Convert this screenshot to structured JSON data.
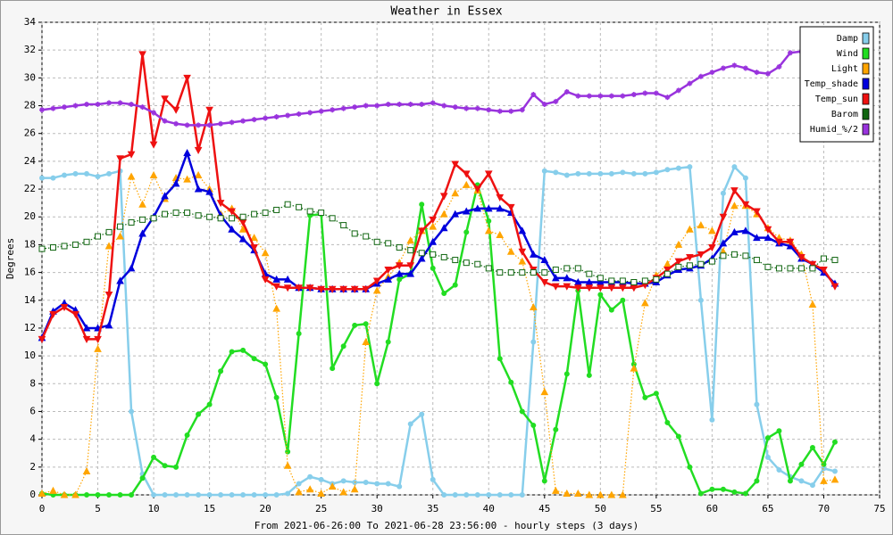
{
  "chart_data": {
    "type": "line",
    "title": "Weather in Essex",
    "x_label": "From 2021-06-26:00 To 2021-06-28 23:56:00 - hourly steps (3 days)",
    "y_label": "Degrees",
    "x": [
      0,
      1,
      2,
      3,
      4,
      5,
      6,
      7,
      8,
      9,
      10,
      11,
      12,
      13,
      14,
      15,
      16,
      17,
      18,
      19,
      20,
      21,
      22,
      23,
      24,
      25,
      26,
      27,
      28,
      29,
      30,
      31,
      32,
      33,
      34,
      35,
      36,
      37,
      38,
      39,
      40,
      41,
      42,
      43,
      44,
      45,
      46,
      47,
      48,
      49,
      50,
      51,
      52,
      53,
      54,
      55,
      56,
      57,
      58,
      59,
      60,
      61,
      62,
      63,
      64,
      65,
      66,
      67,
      68,
      69,
      70,
      71
    ],
    "xlim": [
      0,
      75
    ],
    "xticks": [
      0,
      5,
      10,
      15,
      20,
      25,
      30,
      35,
      40,
      45,
      50,
      55,
      60,
      65,
      70,
      75
    ],
    "ylim": [
      0,
      34
    ],
    "yticks": [
      0,
      2,
      4,
      6,
      8,
      10,
      12,
      14,
      16,
      18,
      20,
      22,
      24,
      26,
      28,
      30,
      32,
      34
    ],
    "grid": true,
    "legend": "upper right",
    "series": [
      {
        "name": "Damp",
        "color": "#87ceeb",
        "line_style": "solid",
        "marker": "circle",
        "values": [
          22.8,
          22.8,
          23,
          23.1,
          23.1,
          22.9,
          23.1,
          23.3,
          6,
          1.5,
          0,
          0,
          0,
          0,
          0,
          0,
          0,
          0,
          0,
          0,
          0,
          0,
          0.1,
          0.8,
          1.3,
          1.1,
          0.8,
          1,
          0.9,
          0.9,
          0.8,
          0.8,
          0.6,
          5.1,
          5.8,
          1.1,
          0,
          0,
          0,
          0,
          0,
          0,
          0,
          0,
          11,
          23.3,
          23.2,
          23,
          23.1,
          23.1,
          23.1,
          23.1,
          23.2,
          23.1,
          23.1,
          23.2,
          23.4,
          23.5,
          23.6,
          14,
          5.4,
          21.7,
          23.6,
          22.8,
          6.5,
          2.7,
          1.8,
          1.3,
          1,
          0.7,
          1.9,
          1.7
        ]
      },
      {
        "name": "Wind",
        "color": "#22dd22",
        "line_style": "solid",
        "marker": "circle",
        "values": [
          0.1,
          0,
          0,
          0,
          0,
          0,
          0,
          0,
          0,
          1.2,
          2.7,
          2.1,
          2,
          4.3,
          5.8,
          6.5,
          8.9,
          10.3,
          10.4,
          9.8,
          9.4,
          7,
          3.1,
          11.6,
          20.1,
          20.2,
          9.1,
          10.7,
          12.2,
          12.3,
          8,
          11,
          15.5,
          15.9,
          20.9,
          16.3,
          14.5,
          15.1,
          18.9,
          22.3,
          19.7,
          9.8,
          8.1,
          6,
          5,
          1,
          4.7,
          8.7,
          14.7,
          8.6,
          14.4,
          13.3,
          14,
          9.4,
          7,
          7.3,
          5.2,
          4.2,
          2,
          0.1,
          0.4,
          0.4,
          0.2,
          0.1,
          1,
          4.1,
          4.6,
          1,
          2.2,
          3.4,
          2.2,
          3.8
        ]
      },
      {
        "name": "Light",
        "color": "#ffa500",
        "line_style": "dotted",
        "marker": "triangle",
        "values": [
          0.1,
          0.3,
          0,
          0,
          1.7,
          10.5,
          17.9,
          18.6,
          22.9,
          20.9,
          23,
          21.3,
          22.8,
          22.7,
          23,
          22,
          20.2,
          20.6,
          19.1,
          18.5,
          17.4,
          13.4,
          2.1,
          0.2,
          0.4,
          0.1,
          0.6,
          0.2,
          0.4,
          11,
          14.7,
          15.7,
          16.7,
          18.3,
          19,
          19.3,
          20.2,
          21.7,
          22.3,
          21.9,
          19,
          18.7,
          17.5,
          16.8,
          13.5,
          7.4,
          0.3,
          0.1,
          0.1,
          0,
          0,
          0,
          0,
          9.1,
          13.8,
          15.8,
          16.6,
          18,
          19.1,
          19.4,
          19,
          17.5,
          20.8,
          20.8,
          20.2,
          19.2,
          18.5,
          18.3,
          17.3,
          13.7,
          1,
          1.1
        ]
      },
      {
        "name": "Temp_shade",
        "color": "#0000dd",
        "line_style": "solid",
        "marker": "triangle",
        "values": [
          11.3,
          13.2,
          13.8,
          13.3,
          12,
          12,
          12.2,
          15.4,
          16.3,
          18.8,
          20,
          21.5,
          22.4,
          24.6,
          22,
          21.8,
          20.1,
          19.1,
          18.4,
          17.6,
          15.9,
          15.5,
          15.5,
          14.9,
          14.9,
          14.8,
          14.8,
          14.8,
          14.8,
          14.8,
          15.2,
          15.5,
          15.9,
          15.9,
          17,
          18.2,
          19.2,
          20.2,
          20.4,
          20.6,
          20.6,
          20.6,
          20.3,
          19,
          17.3,
          16.9,
          15.6,
          15.6,
          15.3,
          15.3,
          15.3,
          15.3,
          15.3,
          15.2,
          15.2,
          15.3,
          15.8,
          16.2,
          16.3,
          16.5,
          17,
          18.1,
          18.9,
          19,
          18.5,
          18.5,
          18.1,
          17.9,
          17,
          16.6,
          16,
          15.2
        ]
      },
      {
        "name": "Temp_sun",
        "color": "#ee1111",
        "line_style": "solid",
        "marker": "triangle-down",
        "values": [
          11.2,
          13,
          13.5,
          13,
          11.2,
          11.2,
          14.4,
          24.2,
          24.5,
          31.7,
          25.2,
          28.5,
          27.7,
          30,
          24.8,
          27.7,
          21,
          20.4,
          19.6,
          17.8,
          15.5,
          15,
          14.9,
          14.9,
          14.9,
          14.8,
          14.8,
          14.8,
          14.8,
          14.8,
          15.4,
          16.2,
          16.5,
          16.5,
          19,
          19.8,
          21.5,
          23.8,
          23.1,
          22,
          23.1,
          21.4,
          20.7,
          17.5,
          16.2,
          15.3,
          15,
          15,
          14.9,
          14.9,
          14.9,
          14.9,
          14.9,
          14.9,
          15.1,
          15.6,
          16.2,
          16.8,
          17.1,
          17.3,
          17.8,
          20,
          21.9,
          20.9,
          20.4,
          19.1,
          18.2,
          18.2,
          17.1,
          16.6,
          16.2,
          15
        ]
      },
      {
        "name": "Barom",
        "color": "#116611",
        "line_style": "dotted",
        "marker": "square",
        "values": [
          17.7,
          17.8,
          17.9,
          18,
          18.2,
          18.6,
          18.9,
          19.3,
          19.6,
          19.8,
          19.9,
          20.2,
          20.3,
          20.3,
          20.1,
          20,
          19.9,
          19.9,
          20,
          20.2,
          20.3,
          20.5,
          20.9,
          20.7,
          20.4,
          20.3,
          19.9,
          19.4,
          18.8,
          18.6,
          18.2,
          18.1,
          17.8,
          17.6,
          17.4,
          17.3,
          17.1,
          16.9,
          16.7,
          16.6,
          16.3,
          16,
          16,
          16,
          16,
          16,
          16.2,
          16.3,
          16.3,
          15.9,
          15.6,
          15.4,
          15.4,
          15.3,
          15.4,
          15.5,
          15.9,
          16.4,
          16.5,
          16.6,
          16.8,
          17.2,
          17.3,
          17.2,
          16.9,
          16.4,
          16.3,
          16.3,
          16.3,
          16.3,
          17,
          16.9
        ]
      },
      {
        "name": "Humid_%/2",
        "color": "#9933dd",
        "line_style": "solid",
        "marker": "star",
        "values": [
          27.7,
          27.8,
          27.9,
          28,
          28.1,
          28.1,
          28.2,
          28.2,
          28.1,
          27.9,
          27.5,
          26.9,
          26.7,
          26.6,
          26.6,
          26.6,
          26.7,
          26.8,
          26.9,
          27,
          27.1,
          27.2,
          27.3,
          27.4,
          27.5,
          27.6,
          27.7,
          27.8,
          27.9,
          28,
          28,
          28.1,
          28.1,
          28.1,
          28.1,
          28.2,
          28,
          27.9,
          27.8,
          27.8,
          27.7,
          27.6,
          27.6,
          27.7,
          28.8,
          28.1,
          28.3,
          29,
          28.7,
          28.7,
          28.7,
          28.7,
          28.7,
          28.8,
          28.9,
          28.9,
          28.6,
          29.1,
          29.6,
          30.1,
          30.4,
          30.7,
          30.9,
          30.7,
          30.4,
          30.3,
          30.8,
          31.8,
          31.9,
          32,
          32.1,
          32.2
        ]
      }
    ]
  }
}
